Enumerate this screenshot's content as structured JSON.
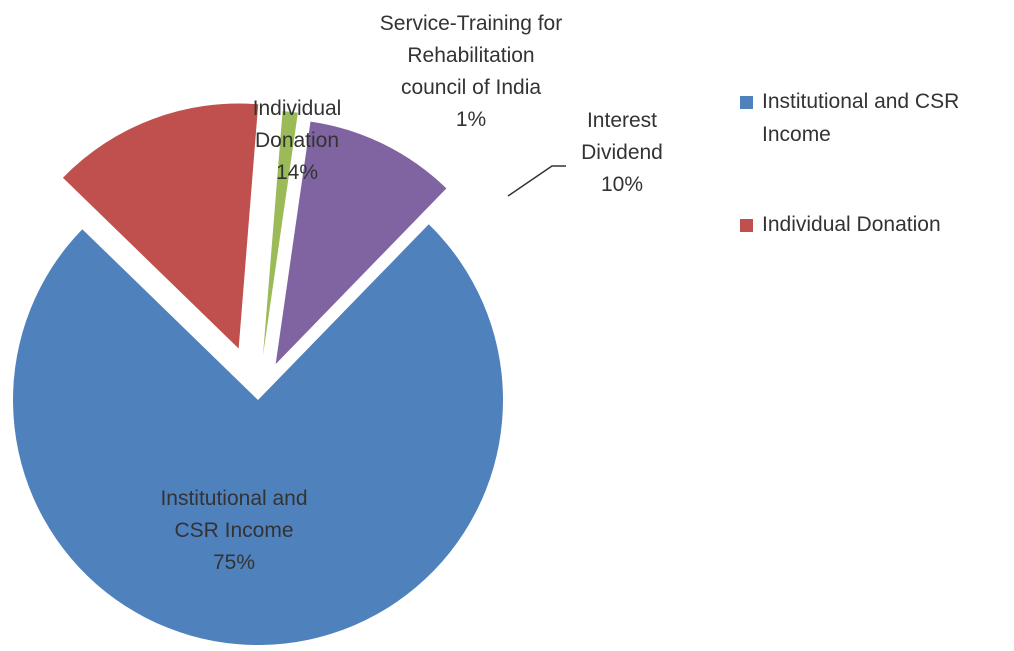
{
  "chart_data": {
    "type": "pie",
    "title": "",
    "slices": [
      {
        "label": "Institutional and CSR Income",
        "label_lines": [
          "Institutional and",
          "CSR Income"
        ],
        "percent_text": "75%",
        "value": 75,
        "color": "#4f81bd"
      },
      {
        "label": "Individual Donation",
        "label_lines": [
          "Individual",
          "Donation"
        ],
        "percent_text": "14%",
        "value": 14,
        "color": "#c0504d"
      },
      {
        "label": "Service-Training for Rehabilitation council of India",
        "label_lines": [
          "Service-Training for",
          "Rehabilitation",
          "council of India"
        ],
        "percent_text": "1%",
        "value": 1,
        "color": "#9bbb59"
      },
      {
        "label": "Interest Dividend",
        "label_lines": [
          "Interest",
          "Dividend"
        ],
        "percent_text": "10%",
        "value": 10,
        "color": "#8064a2"
      }
    ],
    "legend": {
      "placement": "right",
      "entries": [
        {
          "label": "Institutional and CSR Income",
          "lines": [
            "Institutional and CSR",
            "Income"
          ],
          "color": "#4f81bd"
        },
        {
          "label": "Individual Donation",
          "lines": [
            "Individual Donation"
          ],
          "color": "#c0504d"
        }
      ]
    },
    "exploded": true
  }
}
